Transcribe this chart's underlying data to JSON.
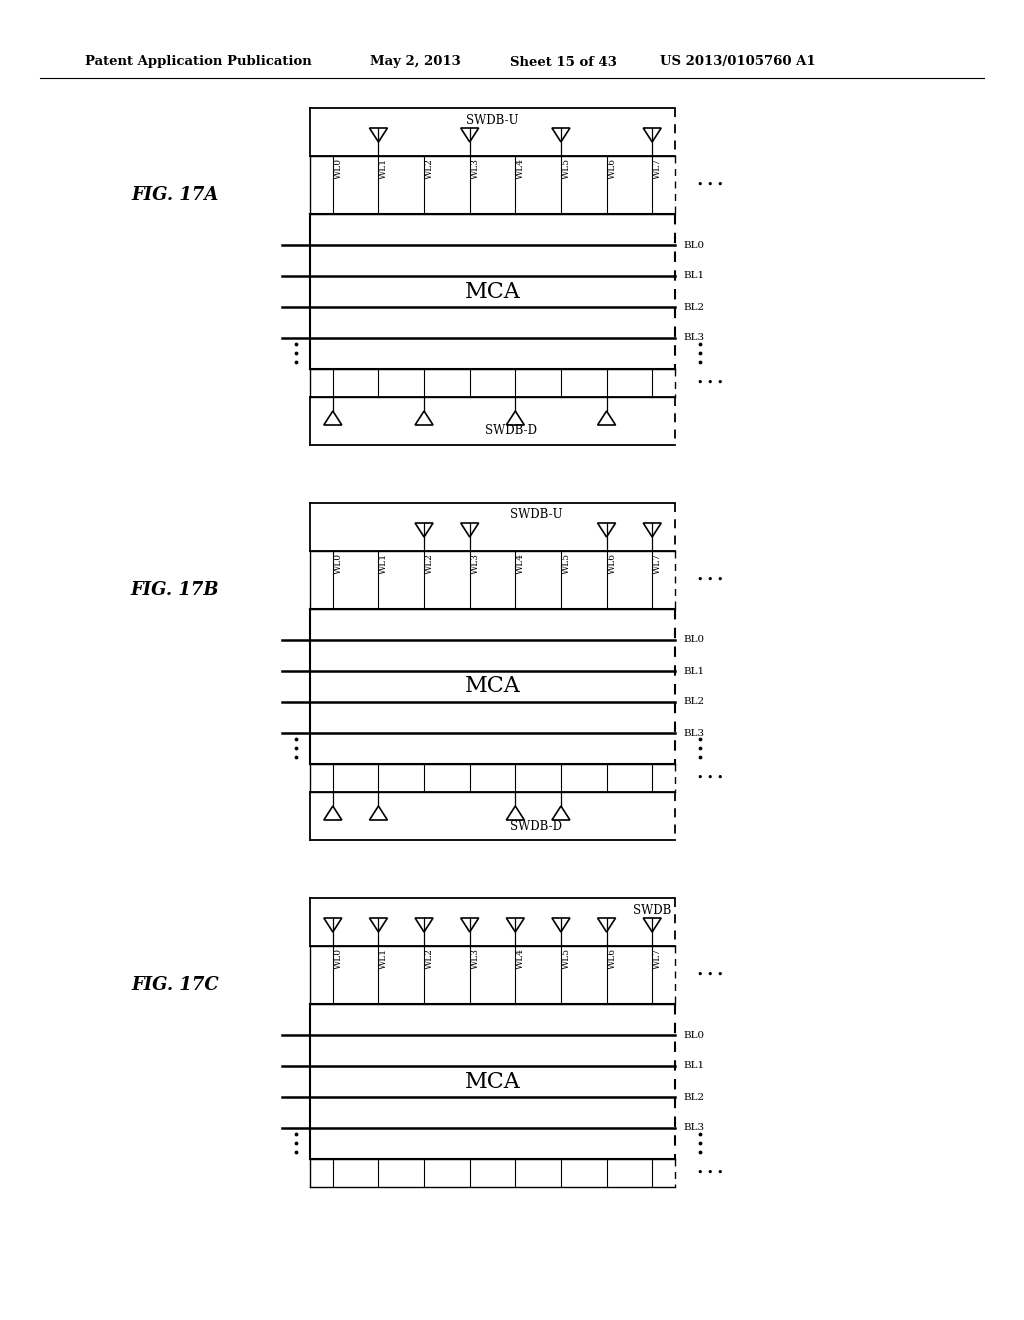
{
  "bg_color": "#ffffff",
  "header_text": "Patent Application Publication",
  "header_date": "May 2, 2013",
  "header_sheet": "Sheet 15 of 43",
  "header_patent": "US 2013/0105760 A1",
  "fig_labels": [
    "FIG. 17A",
    "FIG. 17B",
    "FIG. 17C"
  ],
  "wl_labels": [
    "WL0",
    "WL1",
    "WL2",
    "WL3",
    "WL4",
    "WL5",
    "WL6",
    "WL7"
  ],
  "bl_labels": [
    "BL0",
    "BL1",
    "BL2",
    "BL3"
  ],
  "mca_label": "MCA",
  "swdb_u": "SWDB-U",
  "swdb_d": "SWDB-D",
  "swdb": "SWDB",
  "fig17a_u_tri_idx": [
    1,
    3,
    5,
    7
  ],
  "fig17a_d_tri_idx": [
    0,
    2,
    4,
    6
  ],
  "fig17b_u_tri_idx": [
    2,
    3,
    6,
    7
  ],
  "fig17b_d_tri_idx": [
    0,
    1,
    4,
    5
  ],
  "fig17c_tri_idx": [
    0,
    1,
    2,
    3,
    4,
    5,
    6,
    7
  ]
}
